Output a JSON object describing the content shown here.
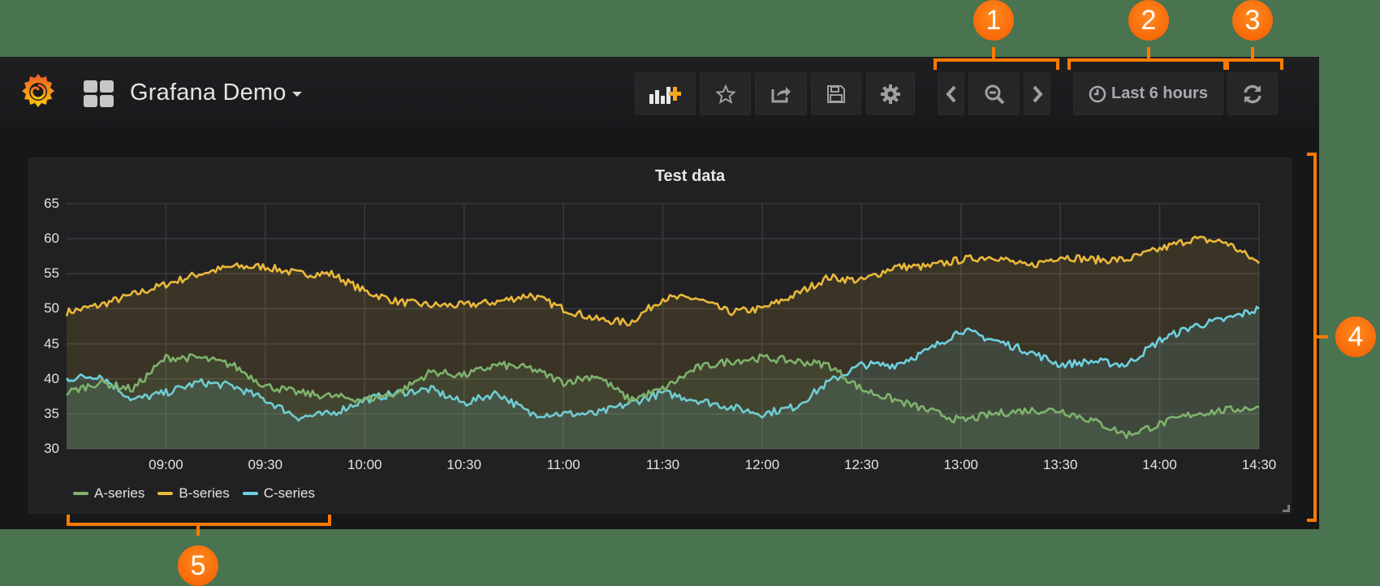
{
  "header": {
    "dashboard_title": "Grafana Demo",
    "buttons": {
      "add_panel": "add-panel",
      "star": "star",
      "share": "share",
      "save": "save",
      "settings": "settings",
      "time_back": "time-back",
      "zoom_out": "zoom-out",
      "time_forward": "time-forward",
      "time_range": "Last 6 hours",
      "refresh": "refresh"
    }
  },
  "callouts": [
    "1",
    "2",
    "3",
    "4",
    "5"
  ],
  "colors": {
    "accent": "#ff7a00",
    "a_series": "#7eb26d",
    "b_series": "#eab839",
    "c_series": "#6ed0e0",
    "background": "#161719",
    "panel": "#212124"
  },
  "panel": {
    "title": "Test data",
    "legend": [
      "A-series",
      "B-series",
      "C-series"
    ]
  },
  "chart_data": {
    "type": "line",
    "title": "Test data",
    "xlabel": "",
    "ylabel": "",
    "ylim": [
      30,
      65
    ],
    "yticks": [
      "65",
      "60",
      "55",
      "50",
      "45",
      "40",
      "35",
      "30"
    ],
    "xticks": [
      "09:00",
      "09:30",
      "10:00",
      "10:30",
      "11:00",
      "11:30",
      "12:00",
      "12:30",
      "13:00",
      "13:30",
      "14:00",
      "14:30"
    ],
    "x_range": [
      "08:30",
      "14:30"
    ],
    "grid": true,
    "fill": true,
    "legend_position": "bottom",
    "x": [
      "08:30",
      "08:40",
      "08:50",
      "09:00",
      "09:10",
      "09:20",
      "09:30",
      "09:40",
      "09:50",
      "10:00",
      "10:10",
      "10:20",
      "10:30",
      "10:40",
      "10:50",
      "11:00",
      "11:10",
      "11:20",
      "11:30",
      "11:40",
      "11:50",
      "12:00",
      "12:10",
      "12:20",
      "12:30",
      "12:40",
      "12:50",
      "13:00",
      "13:10",
      "13:20",
      "13:30",
      "13:40",
      "13:50",
      "14:00",
      "14:10",
      "14:20",
      "14:30"
    ],
    "series": [
      {
        "name": "A-series",
        "color": "#7eb26d",
        "values": [
          38,
          39.5,
          38.5,
          43,
          43,
          42,
          39,
          38,
          37.5,
          37,
          38,
          41,
          40.5,
          42,
          41.5,
          39.5,
          40.5,
          37,
          38.5,
          41.5,
          42.5,
          43,
          42.5,
          42,
          38.5,
          37,
          35.5,
          34,
          35,
          35.5,
          35.5,
          34,
          32,
          33.5,
          35,
          35.5,
          36
        ]
      },
      {
        "name": "B-series",
        "color": "#eab839",
        "values": [
          49.5,
          50.5,
          52,
          53.5,
          55,
          56,
          56,
          55,
          55,
          52.5,
          51,
          50.5,
          50.5,
          51,
          52,
          50,
          48.5,
          48,
          51.5,
          51.5,
          49.5,
          50,
          52,
          54.5,
          54,
          56,
          56,
          57,
          57.5,
          56,
          57.5,
          57,
          57,
          58.5,
          60,
          59.5,
          56.5
        ]
      },
      {
        "name": "C-series",
        "color": "#6ed0e0",
        "values": [
          40,
          40.5,
          37,
          38,
          39.5,
          39,
          37,
          34.5,
          35,
          37,
          38,
          38.5,
          36.5,
          38,
          35,
          35,
          35,
          36.5,
          38,
          37,
          36,
          35,
          36,
          39.5,
          42,
          42,
          44,
          47,
          45.5,
          44,
          42,
          42.5,
          42,
          45.5,
          47.5,
          48.5,
          50
        ]
      }
    ]
  }
}
